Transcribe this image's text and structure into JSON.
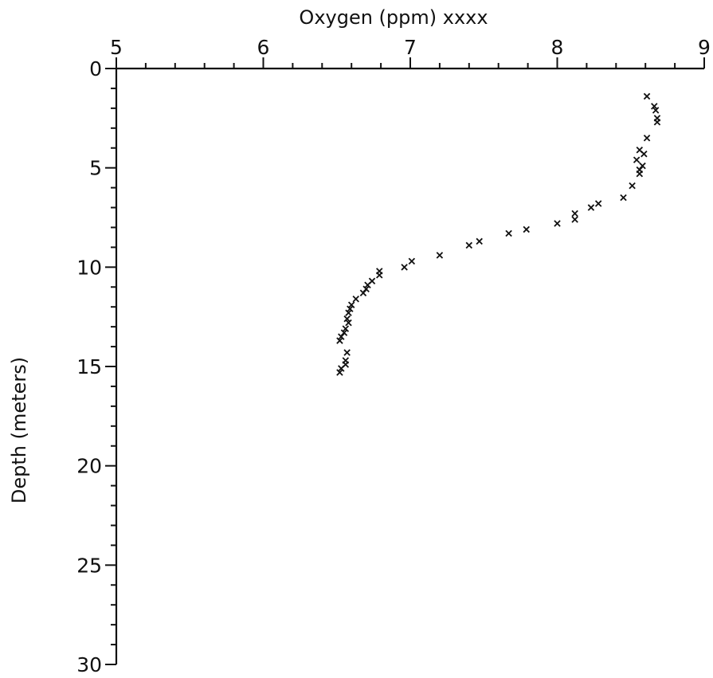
{
  "chart_data": {
    "type": "scatter",
    "title": "",
    "xlabel": "Oxygen (ppm) xxxx",
    "ylabel": "Depth (meters)",
    "x_axis_position": "top",
    "y_axis_inverted": true,
    "xlim": [
      5,
      9
    ],
    "ylim": [
      0,
      30
    ],
    "x_ticks": [
      "5",
      "6",
      "7",
      "8",
      "9"
    ],
    "y_ticks": [
      "0",
      "5",
      "10",
      "15",
      "20",
      "25",
      "30"
    ],
    "grid": false,
    "legend": "none",
    "marker": "x",
    "series": [
      {
        "points": [
          [
            8.61,
            1.4
          ],
          [
            8.66,
            1.9
          ],
          [
            8.67,
            2.1
          ],
          [
            8.68,
            2.5
          ],
          [
            8.68,
            2.7
          ],
          [
            8.61,
            3.5
          ],
          [
            8.56,
            4.1
          ],
          [
            8.59,
            4.3
          ],
          [
            8.54,
            4.6
          ],
          [
            8.58,
            4.9
          ],
          [
            8.56,
            5.1
          ],
          [
            8.56,
            5.3
          ],
          [
            8.51,
            5.9
          ],
          [
            8.45,
            6.5
          ],
          [
            8.28,
            6.8
          ],
          [
            8.23,
            7.0
          ],
          [
            8.12,
            7.3
          ],
          [
            8.12,
            7.6
          ],
          [
            8.0,
            7.8
          ],
          [
            7.79,
            8.1
          ],
          [
            7.67,
            8.3
          ],
          [
            7.47,
            8.7
          ],
          [
            7.4,
            8.9
          ],
          [
            7.2,
            9.4
          ],
          [
            7.01,
            9.7
          ],
          [
            6.96,
            10.0
          ],
          [
            6.79,
            10.2
          ],
          [
            6.79,
            10.4
          ],
          [
            6.74,
            10.7
          ],
          [
            6.71,
            10.9
          ],
          [
            6.7,
            11.1
          ],
          [
            6.68,
            11.3
          ],
          [
            6.63,
            11.6
          ],
          [
            6.6,
            11.9
          ],
          [
            6.59,
            12.1
          ],
          [
            6.58,
            12.3
          ],
          [
            6.57,
            12.6
          ],
          [
            6.58,
            12.8
          ],
          [
            6.56,
            13.1
          ],
          [
            6.55,
            13.3
          ],
          [
            6.53,
            13.5
          ],
          [
            6.52,
            13.7
          ],
          [
            6.57,
            14.3
          ],
          [
            6.56,
            14.7
          ],
          [
            6.56,
            14.9
          ],
          [
            6.53,
            15.1
          ],
          [
            6.52,
            15.3
          ]
        ]
      }
    ]
  }
}
